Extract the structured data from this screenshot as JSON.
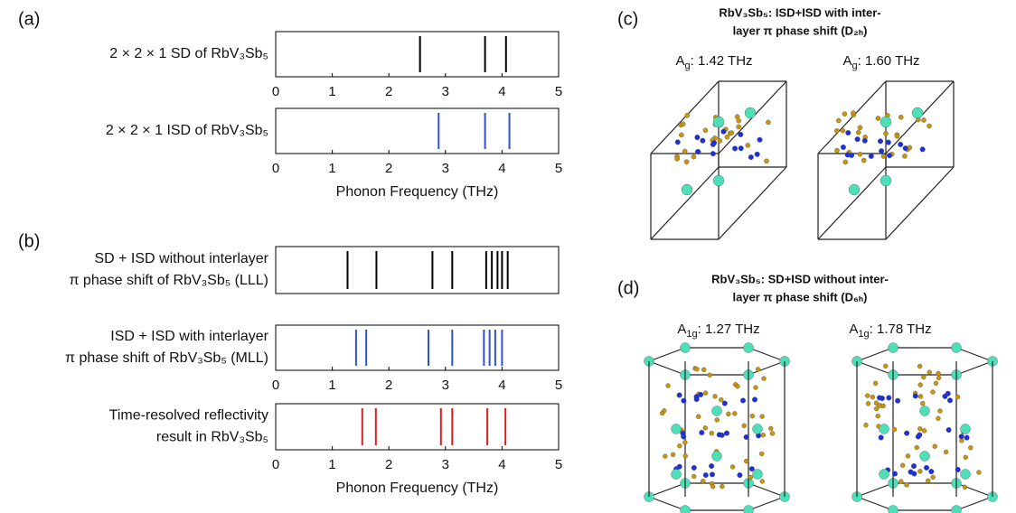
{
  "panel_labels": [
    "(a)",
    "(b)",
    "(c)",
    "(d)"
  ],
  "chart_data": [
    {
      "type": "rug",
      "ylabel": [
        "2 × 2 × 1 SD of RbV₃Sb₅"
      ],
      "values": [
        2.55,
        3.7,
        4.07
      ],
      "color": "#000000",
      "xlim": [
        0,
        5
      ],
      "xticks": [
        0,
        1,
        2,
        3,
        4,
        5
      ]
    },
    {
      "type": "rug",
      "ylabel": [
        "2 × 2 × 1 ISD of RbV₃Sb₅"
      ],
      "values": [
        2.88,
        3.7,
        4.13
      ],
      "color": "#2f4fd8",
      "xlim": [
        0,
        5
      ],
      "xticks": [
        0,
        1,
        2,
        3,
        4,
        5
      ],
      "xlabel": "Phonon Frequency (THz)"
    },
    {
      "type": "rug",
      "ylabel": [
        "SD + ISD without interlayer",
        "π phase shift of RbV₃Sb₅ (LLL)"
      ],
      "values": [
        1.27,
        1.78,
        2.77,
        3.12,
        3.72,
        3.82,
        3.92,
        4.0,
        4.1
      ],
      "color": "#000000",
      "xlim": [
        0,
        5
      ]
    },
    {
      "type": "rug",
      "ylabel": [
        "ISD + ISD with interlayer",
        "π phase shift of RbV₃Sb₅ (MLL)"
      ],
      "values": [
        1.42,
        1.6,
        2.7,
        3.12,
        3.68,
        3.78,
        3.88,
        4.0
      ],
      "color": "#2f4fd8",
      "xlim": [
        0,
        5
      ],
      "xticks": [
        0,
        1,
        2,
        3,
        4,
        5
      ]
    },
    {
      "type": "rug",
      "ylabel": [
        "Time-resolved reflectivity",
        "result in RbV₃Sb₅"
      ],
      "values": [
        1.53,
        1.77,
        2.92,
        3.12,
        3.74,
        4.06
      ],
      "color": "#d81f1f",
      "xlim": [
        0,
        5
      ],
      "xticks": [
        0,
        1,
        2,
        3,
        4,
        5
      ],
      "xlabel": "Phonon Frequency (THz)"
    }
  ],
  "structures": [
    {
      "title": [
        "RbV₃Sb₅: ISD+ISD with inter-",
        "layer π phase shift (D₂ₕ)"
      ],
      "modes": [
        {
          "symbol": "A",
          "sub": "g",
          "rest": ": 1.42 THz"
        },
        {
          "symbol": "A",
          "sub": "g",
          "rest": ": 1.60 THz"
        }
      ]
    },
    {
      "title": [
        "RbV₃Sb₅: SD+ISD without inter-",
        "layer π phase shift (D₆ₕ)"
      ],
      "modes": [
        {
          "symbol": "A",
          "sub": "1g",
          "rest": ": 1.27 THz"
        },
        {
          "symbol": "A",
          "sub": "1g",
          "rest": ": 1.78 THz"
        }
      ]
    }
  ]
}
